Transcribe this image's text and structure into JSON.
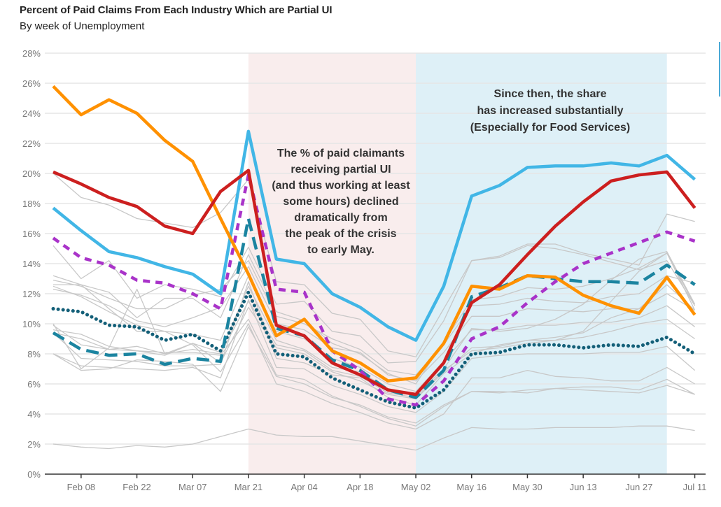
{
  "header": {
    "title": "Percent of Paid Claims From Each Industry Which are Partial UI",
    "subtitle": "By week of Unemployment"
  },
  "chart_data": {
    "type": "line",
    "title": "Percent of Paid Claims From Each Industry Which are Partial UI",
    "subtitle": "By week of Unemployment",
    "xlabel": "",
    "ylabel": "",
    "ylim": [
      0,
      28
    ],
    "y_ticks": [
      "0%",
      "2%",
      "4%",
      "6%",
      "8%",
      "10%",
      "12%",
      "14%",
      "16%",
      "18%",
      "20%",
      "22%",
      "24%",
      "26%",
      "28%"
    ],
    "x": [
      "Feb 01",
      "Feb 08",
      "Feb 15",
      "Feb 22",
      "Feb 29",
      "Mar 07",
      "Mar 14",
      "Mar 21",
      "Mar 28",
      "Apr 04",
      "Apr 11",
      "Apr 18",
      "Apr 25",
      "May 02",
      "May 09",
      "May 16",
      "May 23",
      "May 30",
      "Jun 06",
      "Jun 13",
      "Jun 20",
      "Jun 27",
      "Jul 04",
      "Jul 11"
    ],
    "x_tick_labels": [
      "Feb 08",
      "Feb 22",
      "Mar 07",
      "Mar 21",
      "Apr 04",
      "Apr 18",
      "May 02",
      "May 16",
      "May 30",
      "Jun 13",
      "Jun 27",
      "Jul 11"
    ],
    "x_tick_indices": [
      1,
      3,
      5,
      7,
      9,
      11,
      13,
      15,
      17,
      19,
      21,
      23
    ],
    "grid": true,
    "legend": "none",
    "shaded_regions": [
      {
        "from": "Mar 21",
        "to": "May 02",
        "color": "#f9eded"
      },
      {
        "from": "May 02",
        "to": "Jul 04",
        "color": "#def0f7"
      }
    ],
    "annotations": [
      {
        "lines": [
          "The % of paid claimants",
          "receiving partial UI",
          "(and thus working at least",
          "some hours) declined",
          "dramatically from",
          "the peak of the crisis",
          "to early May."
        ]
      },
      {
        "lines": [
          "Since then, the share",
          "has increased substantially",
          "(Especially for Food Services)"
        ]
      }
    ],
    "highlighted_series": [
      {
        "name": "Orange series",
        "color": "#ff9100",
        "style": "solid",
        "values": [
          25.8,
          23.9,
          24.9,
          24.0,
          22.2,
          20.8,
          17.0,
          13.3,
          9.2,
          10.3,
          8.2,
          7.4,
          6.2,
          6.4,
          8.7,
          12.5,
          12.3,
          13.2,
          13.1,
          11.9,
          11.2,
          10.7,
          13.1,
          10.6
        ]
      },
      {
        "name": "Light blue series",
        "color": "#41b6e6",
        "style": "solid",
        "values": [
          17.7,
          16.2,
          14.8,
          14.4,
          13.8,
          13.3,
          12.0,
          22.8,
          14.3,
          14.0,
          12.0,
          11.1,
          9.8,
          8.9,
          12.5,
          18.5,
          19.2,
          20.4,
          20.5,
          20.5,
          20.7,
          20.5,
          21.2,
          19.6
        ]
      },
      {
        "name": "Red series",
        "color": "#cc1f1f",
        "style": "solid",
        "values": [
          20.1,
          19.3,
          18.4,
          17.8,
          16.5,
          16.0,
          18.8,
          20.2,
          9.9,
          9.2,
          7.4,
          6.6,
          5.6,
          5.3,
          7.4,
          11.4,
          12.6,
          14.6,
          16.5,
          18.1,
          19.5,
          19.9,
          20.1,
          17.7
        ]
      },
      {
        "name": "Purple dashed series",
        "color": "#a933c9",
        "style": "dashed",
        "values": [
          15.7,
          14.4,
          13.9,
          12.9,
          12.7,
          12.0,
          11.0,
          19.9,
          12.3,
          12.1,
          8.2,
          6.9,
          5.0,
          4.6,
          6.2,
          9.0,
          9.8,
          11.4,
          12.8,
          14.0,
          14.7,
          15.4,
          16.1,
          15.5
        ]
      },
      {
        "name": "Teal dashed series",
        "color": "#1b84a0",
        "style": "dashed",
        "values": [
          9.4,
          8.3,
          7.9,
          8.0,
          7.3,
          7.7,
          7.5,
          17.0,
          9.7,
          9.2,
          7.6,
          6.9,
          5.6,
          5.1,
          6.9,
          11.8,
          12.4,
          13.2,
          13.0,
          12.8,
          12.8,
          12.7,
          13.9,
          12.6
        ]
      },
      {
        "name": "Teal dotted series",
        "color": "#135f78",
        "style": "dotted",
        "values": [
          11.0,
          10.8,
          9.9,
          9.8,
          8.9,
          9.3,
          8.2,
          12.1,
          8.0,
          7.8,
          6.4,
          5.6,
          4.8,
          4.4,
          5.6,
          8.0,
          8.1,
          8.6,
          8.6,
          8.4,
          8.6,
          8.5,
          9.1,
          8.0
        ]
      }
    ],
    "background_series": [
      {
        "name": "Other industry 1",
        "color": "#c8c8c8",
        "values": [
          20.0,
          18.4,
          17.9,
          17.0,
          16.7,
          16.4,
          17.4,
          19.6,
          12.8,
          12.6,
          10.7,
          10.3,
          8.2,
          7.8,
          11.0,
          14.2,
          14.4,
          15.2,
          15.0,
          14.6,
          14.1,
          13.6,
          14.2,
          11.2
        ]
      },
      {
        "name": "Other industry 2",
        "color": "#c8c8c8",
        "values": [
          15.2,
          13.0,
          14.2,
          11.7,
          12.6,
          12.3,
          11.8,
          15.1,
          11.3,
          11.5,
          9.5,
          9.2,
          7.4,
          7.5,
          10.2,
          14.2,
          14.5,
          15.3,
          15.3,
          14.7,
          14.3,
          13.9,
          17.3,
          16.8
        ]
      },
      {
        "name": "Other industry 3",
        "color": "#c8c8c8",
        "values": [
          13.2,
          12.6,
          12.1,
          10.4,
          11.7,
          11.7,
          10.4,
          14.6,
          10.8,
          10.2,
          8.7,
          8.0,
          6.7,
          6.0,
          8.8,
          11.6,
          11.8,
          12.4,
          12.3,
          12.5,
          13.0,
          13.7,
          14.7,
          11.2
        ]
      },
      {
        "name": "Other industry 4",
        "color": "#c8c8c8",
        "values": [
          12.9,
          12.5,
          11.7,
          11.0,
          11.0,
          11.9,
          12.3,
          14.2,
          10.5,
          10.0,
          9.0,
          8.3,
          6.9,
          6.6,
          8.6,
          11.2,
          11.3,
          11.7,
          11.5,
          11.4,
          11.8,
          12.0,
          13.2,
          12.7
        ]
      },
      {
        "name": "Other industry 5",
        "color": "#c8c8c8",
        "values": [
          12.3,
          11.9,
          11.2,
          10.2,
          9.8,
          10.4,
          11.1,
          13.8,
          10.0,
          9.6,
          8.4,
          8.1,
          6.6,
          6.2,
          8.1,
          10.5,
          10.5,
          11.0,
          10.9,
          10.8,
          11.0,
          11.0,
          12.6,
          10.9
        ]
      },
      {
        "name": "Other industry 6",
        "color": "#c8c8c8",
        "values": [
          12.6,
          12.6,
          11.0,
          9.5,
          9.5,
          9.3,
          8.9,
          13.2,
          9.5,
          9.0,
          7.7,
          7.1,
          6.0,
          5.5,
          7.5,
          9.6,
          9.6,
          9.9,
          9.9,
          10.1,
          10.1,
          10.4,
          11.2,
          9.8
        ]
      },
      {
        "name": "Other industry 7",
        "color": "#c8c8c8",
        "values": [
          10.0,
          7.0,
          8.4,
          12.3,
          8.0,
          8.7,
          8.1,
          12.5,
          8.9,
          8.3,
          7.1,
          6.8,
          5.7,
          5.3,
          7.0,
          9.7,
          9.5,
          9.7,
          10.3,
          11.3,
          12.9,
          14.3,
          14.8,
          11.3
        ]
      },
      {
        "name": "Other industry 8",
        "color": "#c8c8c8",
        "values": [
          9.6,
          9.3,
          8.5,
          8.2,
          7.9,
          8.7,
          7.4,
          11.1,
          8.4,
          8.0,
          6.8,
          6.2,
          5.3,
          5.0,
          6.8,
          8.4,
          8.5,
          8.9,
          9.1,
          9.4,
          10.4,
          11.0,
          12.0,
          10.9
        ]
      },
      {
        "name": "Other industry 8b",
        "color": "#c8c8c8",
        "values": [
          9.4,
          9.0,
          8.3,
          8.5,
          8.0,
          8.3,
          8.0,
          11.5,
          8.6,
          8.2,
          6.9,
          6.5,
          5.4,
          5.1,
          6.9,
          8.2,
          8.4,
          8.7,
          8.9,
          9.5,
          11.5,
          13.5,
          14.7,
          10.9
        ]
      },
      {
        "name": "Other industry 9",
        "color": "#c8c8c8",
        "values": [
          8.0,
          7.2,
          7.1,
          7.0,
          6.9,
          7.1,
          6.4,
          11.6,
          7.1,
          7.0,
          5.9,
          5.3,
          4.5,
          4.1,
          5.5,
          7.7,
          7.9,
          8.0,
          8.0,
          8.0,
          8.1,
          8.1,
          8.5,
          6.9
        ]
      },
      {
        "name": "Other industry 10",
        "color": "#c8c8c8",
        "values": [
          12.5,
          11.8,
          10.8,
          9.9,
          9.5,
          8.6,
          6.8,
          10.0,
          6.0,
          5.5,
          4.7,
          4.1,
          3.4,
          3.0,
          4.0,
          6.4,
          6.4,
          6.9,
          6.5,
          6.4,
          6.2,
          6.2,
          7.1,
          6.0
        ]
      },
      {
        "name": "Other industry 11",
        "color": "#c8c8c8",
        "values": [
          9.9,
          8.6,
          8.3,
          8.2,
          8.1,
          8.1,
          7.9,
          10.3,
          6.6,
          6.3,
          5.2,
          4.5,
          3.7,
          3.2,
          4.5,
          5.5,
          5.5,
          5.4,
          5.7,
          5.8,
          5.8,
          5.6,
          6.3,
          5.3
        ]
      },
      {
        "name": "Other industry 12",
        "color": "#c8c8c8",
        "values": [
          8.0,
          6.9,
          7.0,
          7.6,
          7.5,
          7.3,
          5.5,
          9.8,
          6.5,
          6.0,
          5.1,
          4.6,
          3.8,
          3.4,
          4.6,
          5.5,
          5.4,
          5.6,
          5.7,
          5.6,
          5.5,
          5.4,
          5.9,
          5.3
        ]
      },
      {
        "name": "Other industry 13",
        "color": "#c8c8c8",
        "values": [
          2.0,
          1.8,
          1.7,
          1.9,
          1.8,
          2.0,
          2.5,
          3.0,
          2.6,
          2.5,
          2.5,
          2.2,
          1.9,
          1.6,
          2.4,
          3.1,
          3.0,
          3.0,
          3.1,
          3.1,
          3.1,
          3.2,
          3.2,
          2.9
        ]
      },
      {
        "name": "Other industry 14",
        "color": "#c8c8c8",
        "values": [
          9.4,
          7.7,
          7.6,
          7.5,
          7.2,
          7.2,
          7.3,
          12.8,
          7.7,
          7.4,
          6.6,
          6.4,
          5.1,
          4.6,
          6.7,
          8.0,
          8.6,
          8.9,
          8.9,
          9.1,
          9.5,
          10.0,
          10.3,
          9.0
        ]
      }
    ]
  }
}
